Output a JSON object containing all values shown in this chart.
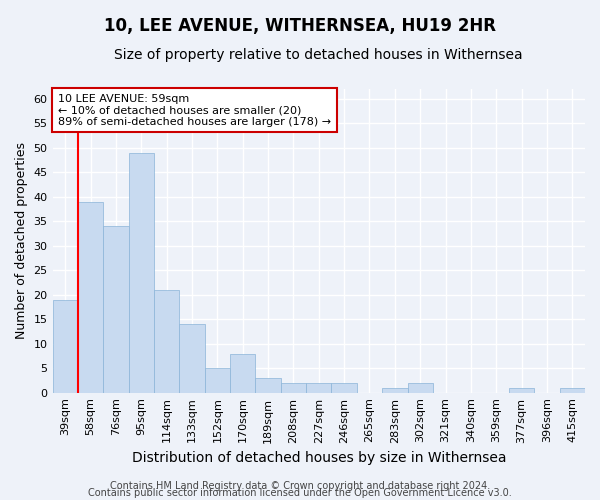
{
  "title": "10, LEE AVENUE, WITHERNSEA, HU19 2HR",
  "subtitle": "Size of property relative to detached houses in Withernsea",
  "xlabel": "Distribution of detached houses by size in Withernsea",
  "ylabel": "Number of detached properties",
  "categories": [
    "39sqm",
    "58sqm",
    "76sqm",
    "95sqm",
    "114sqm",
    "133sqm",
    "152sqm",
    "170sqm",
    "189sqm",
    "208sqm",
    "227sqm",
    "246sqm",
    "265sqm",
    "283sqm",
    "302sqm",
    "321sqm",
    "340sqm",
    "359sqm",
    "377sqm",
    "396sqm",
    "415sqm"
  ],
  "values": [
    19,
    39,
    34,
    49,
    21,
    14,
    5,
    8,
    3,
    2,
    2,
    2,
    0,
    1,
    2,
    0,
    0,
    0,
    1,
    0,
    1
  ],
  "bar_color": "#c8daf0",
  "bar_edge_color": "#8ab4d8",
  "red_line_index": 1,
  "annotation_line1": "10 LEE AVENUE: 59sqm",
  "annotation_line2": "← 10% of detached houses are smaller (20)",
  "annotation_line3": "89% of semi-detached houses are larger (178) →",
  "annotation_box_color": "#ffffff",
  "annotation_box_edge": "#cc0000",
  "ylim": [
    0,
    62
  ],
  "yticks": [
    0,
    5,
    10,
    15,
    20,
    25,
    30,
    35,
    40,
    45,
    50,
    55,
    60
  ],
  "footer1": "Contains HM Land Registry data © Crown copyright and database right 2024.",
  "footer2": "Contains public sector information licensed under the Open Government Licence v3.0.",
  "background_color": "#eef2f9",
  "grid_color": "#ffffff",
  "title_fontsize": 12,
  "subtitle_fontsize": 10,
  "xlabel_fontsize": 10,
  "ylabel_fontsize": 9,
  "tick_fontsize": 8,
  "annotation_fontsize": 8,
  "footer_fontsize": 7
}
